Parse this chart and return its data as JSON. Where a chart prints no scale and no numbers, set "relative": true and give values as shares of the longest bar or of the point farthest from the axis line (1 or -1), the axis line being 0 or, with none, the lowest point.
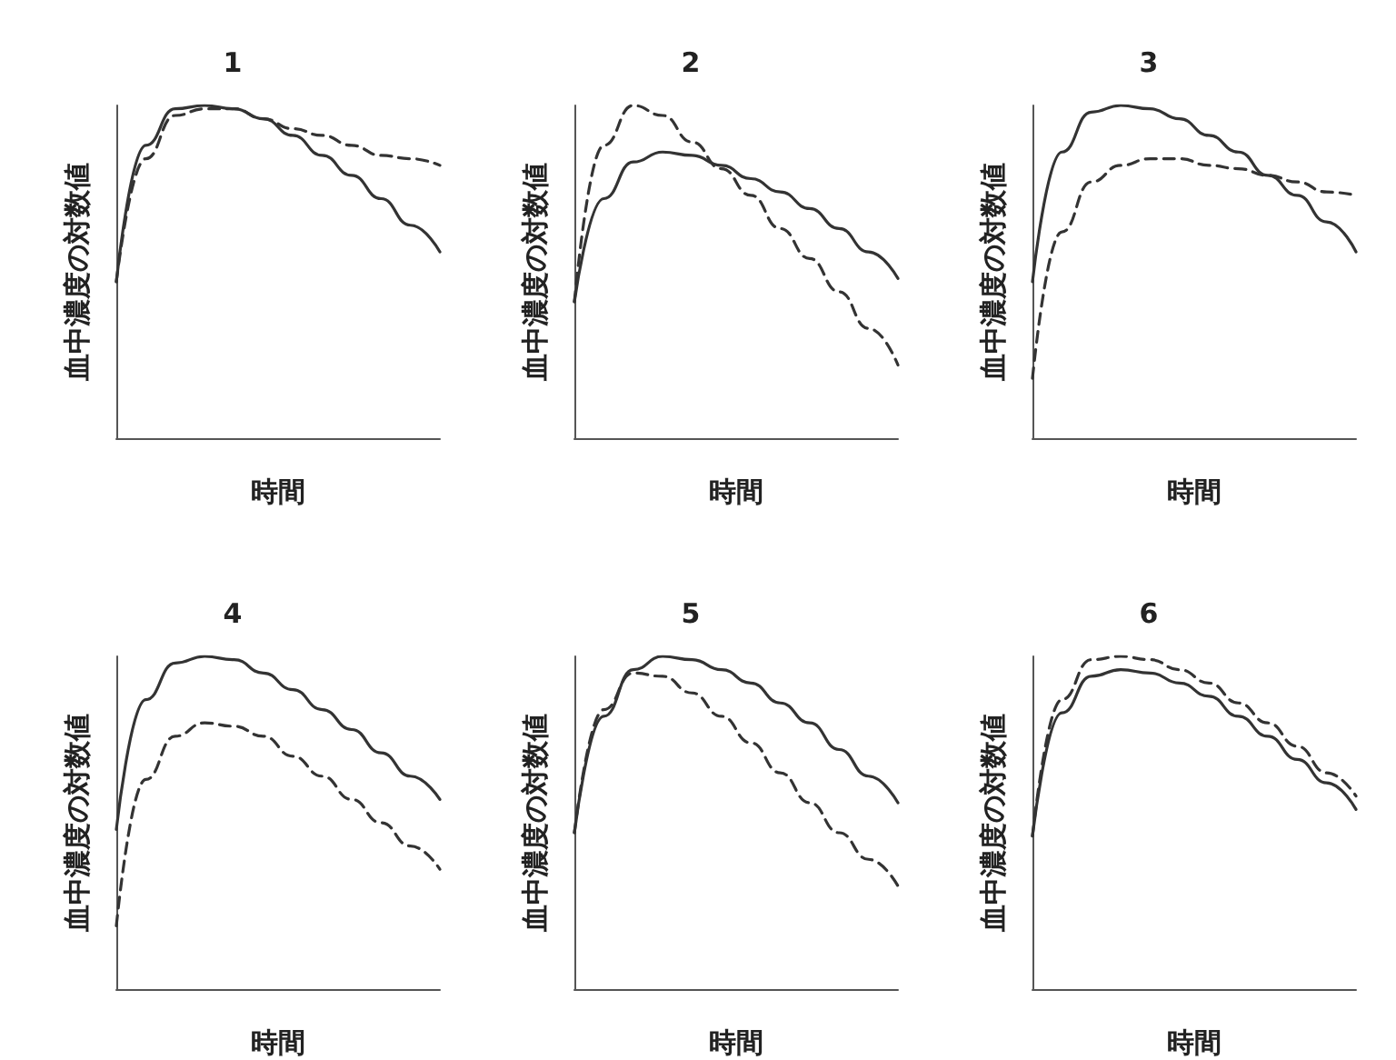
{
  "chart_data": [
    {
      "type": "line",
      "title": "1",
      "xlabel": "時間",
      "ylabel": "血中濃度の対数値",
      "relative": true,
      "grid": false,
      "marker": "none",
      "categories": [
        null,
        null,
        null,
        null,
        null,
        null,
        null,
        null,
        null,
        null,
        null,
        null
      ],
      "series": [
        {
          "color": "#333333",
          "line_style": "solid",
          "values": [
            0.47,
            0.88,
            0.99,
            1,
            0.99,
            0.96,
            0.91,
            0.85,
            0.79,
            0.72,
            0.64,
            0.56
          ]
        },
        {
          "color": "#333333",
          "line_style": "dashed",
          "values": [
            0.47,
            0.84,
            0.97,
            0.99,
            0.99,
            0.96,
            0.93,
            0.91,
            0.88,
            0.85,
            0.84,
            0.82
          ]
        }
      ]
    },
    {
      "type": "line",
      "title": "2",
      "xlabel": "時間",
      "ylabel": "血中濃度の対数値",
      "relative": true,
      "grid": false,
      "marker": "none",
      "categories": [
        null,
        null,
        null,
        null,
        null,
        null,
        null,
        null,
        null,
        null,
        null,
        null
      ],
      "series": [
        {
          "color": "#333333",
          "line_style": "solid",
          "values": [
            0.41,
            0.72,
            0.83,
            0.86,
            0.85,
            0.82,
            0.78,
            0.74,
            0.69,
            0.63,
            0.56,
            0.48
          ]
        },
        {
          "color": "#333333",
          "line_style": "dashed",
          "values": [
            0.41,
            0.88,
            1,
            0.97,
            0.89,
            0.81,
            0.73,
            0.63,
            0.54,
            0.44,
            0.33,
            0.22
          ]
        }
      ]
    },
    {
      "type": "line",
      "title": "3",
      "xlabel": "時間",
      "ylabel": "血中濃度の対数値",
      "relative": true,
      "grid": false,
      "marker": "none",
      "categories": [
        null,
        null,
        null,
        null,
        null,
        null,
        null,
        null,
        null,
        null,
        null,
        null
      ],
      "series": [
        {
          "color": "#333333",
          "line_style": "solid",
          "values": [
            0.47,
            0.86,
            0.98,
            1,
            0.99,
            0.96,
            0.91,
            0.86,
            0.79,
            0.73,
            0.65,
            0.56
          ]
        },
        {
          "color": "#333333",
          "line_style": "dashed",
          "values": [
            0.18,
            0.62,
            0.77,
            0.82,
            0.84,
            0.84,
            0.82,
            0.81,
            0.79,
            0.77,
            0.74,
            0.73
          ]
        }
      ]
    },
    {
      "type": "line",
      "title": "4",
      "xlabel": "時間",
      "ylabel": "血中濃度の対数値",
      "relative": true,
      "grid": false,
      "marker": "none",
      "categories": [
        null,
        null,
        null,
        null,
        null,
        null,
        null,
        null,
        null,
        null,
        null,
        null
      ],
      "series": [
        {
          "color": "#333333",
          "line_style": "solid",
          "values": [
            0.48,
            0.87,
            0.98,
            1,
            0.99,
            0.95,
            0.9,
            0.84,
            0.78,
            0.71,
            0.64,
            0.57
          ]
        },
        {
          "color": "#333333",
          "line_style": "dashed",
          "values": [
            0.19,
            0.63,
            0.76,
            0.8,
            0.79,
            0.76,
            0.7,
            0.64,
            0.57,
            0.5,
            0.43,
            0.36
          ]
        }
      ]
    },
    {
      "type": "line",
      "title": "5",
      "xlabel": "時間",
      "ylabel": "血中濃度の対数値",
      "relative": true,
      "grid": false,
      "marker": "none",
      "categories": [
        null,
        null,
        null,
        null,
        null,
        null,
        null,
        null,
        null,
        null,
        null,
        null
      ],
      "series": [
        {
          "color": "#333333",
          "line_style": "solid",
          "values": [
            0.47,
            0.82,
            0.96,
            1,
            0.99,
            0.96,
            0.92,
            0.86,
            0.8,
            0.72,
            0.64,
            0.56
          ]
        },
        {
          "color": "#333333",
          "line_style": "dashed",
          "values": [
            0.47,
            0.84,
            0.95,
            0.94,
            0.89,
            0.82,
            0.74,
            0.65,
            0.56,
            0.47,
            0.39,
            0.31
          ]
        }
      ]
    },
    {
      "type": "line",
      "title": "6",
      "xlabel": "時間",
      "ylabel": "血中濃度の対数値",
      "relative": true,
      "grid": false,
      "marker": "none",
      "categories": [
        null,
        null,
        null,
        null,
        null,
        null,
        null,
        null,
        null,
        null,
        null,
        null
      ],
      "series": [
        {
          "color": "#333333",
          "line_style": "solid",
          "values": [
            0.46,
            0.83,
            0.94,
            0.96,
            0.95,
            0.92,
            0.88,
            0.82,
            0.76,
            0.69,
            0.62,
            0.54
          ]
        },
        {
          "color": "#333333",
          "line_style": "dashed",
          "values": [
            0.46,
            0.87,
            0.99,
            1,
            0.99,
            0.96,
            0.92,
            0.86,
            0.8,
            0.73,
            0.65,
            0.58
          ]
        }
      ]
    }
  ]
}
